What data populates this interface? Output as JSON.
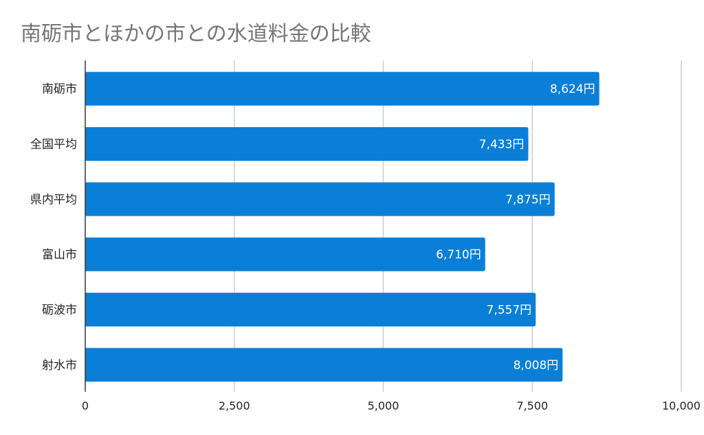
{
  "chart_data": {
    "type": "bar",
    "orientation": "horizontal",
    "title": "南砺市とほかの市との水道料金の比較",
    "categories": [
      "南砺市",
      "全国平均",
      "県内平均",
      "富山市",
      "砺波市",
      "射水市"
    ],
    "values": [
      8624,
      7433,
      7875,
      6710,
      7557,
      8008
    ],
    "data_labels": [
      "8,624円",
      "7,433円",
      "7,875円",
      "6,710円",
      "7,557円",
      "8,008円"
    ],
    "xlim": [
      0,
      10000
    ],
    "xticks": [
      0,
      2500,
      5000,
      7500,
      10000
    ],
    "xtick_labels": [
      "0",
      "2,500",
      "5,000",
      "7,500",
      "10,000"
    ],
    "grid": true,
    "legend": "none",
    "colors": {
      "bar": "#0b7fd8",
      "grid": "#cccccc",
      "title": "#757575"
    }
  }
}
